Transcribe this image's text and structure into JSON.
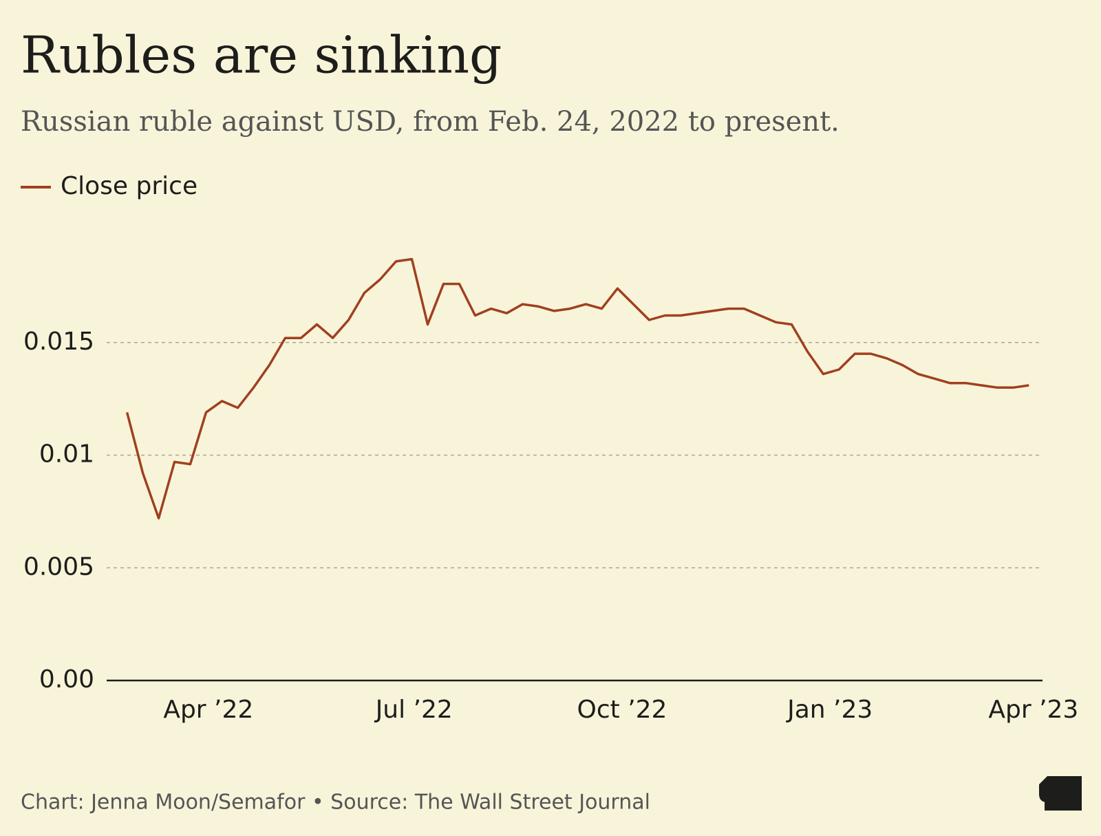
{
  "chart_data": {
    "type": "line",
    "title": "Rubles are sinking",
    "subtitle": "Russian ruble against USD, from Feb. 24, 2022 to present.",
    "footer": "Chart: Jenna Moon/Semafor • Source: The Wall Street Journal",
    "x": [
      "2022-02-24",
      "2022-03-03",
      "2022-03-10",
      "2022-03-17",
      "2022-03-24",
      "2022-03-31",
      "2022-04-07",
      "2022-04-14",
      "2022-04-21",
      "2022-04-28",
      "2022-05-05",
      "2022-05-12",
      "2022-05-19",
      "2022-05-26",
      "2022-06-02",
      "2022-06-09",
      "2022-06-16",
      "2022-06-23",
      "2022-06-30",
      "2022-07-07",
      "2022-07-14",
      "2022-07-21",
      "2022-07-28",
      "2022-08-04",
      "2022-08-11",
      "2022-08-18",
      "2022-08-25",
      "2022-09-01",
      "2022-09-08",
      "2022-09-15",
      "2022-09-22",
      "2022-09-29",
      "2022-10-06",
      "2022-10-13",
      "2022-10-20",
      "2022-10-27",
      "2022-11-03",
      "2022-11-10",
      "2022-11-17",
      "2022-11-24",
      "2022-12-01",
      "2022-12-08",
      "2022-12-15",
      "2022-12-22",
      "2022-12-29",
      "2023-01-05",
      "2023-01-12",
      "2023-01-19",
      "2023-01-26",
      "2023-02-02",
      "2023-02-09",
      "2023-02-16",
      "2023-02-23",
      "2023-03-02",
      "2023-03-09",
      "2023-03-16",
      "2023-03-23",
      "2023-03-30"
    ],
    "series": [
      {
        "name": "Close price",
        "color": "#a0401f",
        "values": [
          0.0119,
          0.0092,
          0.0072,
          0.0097,
          0.0096,
          0.0119,
          0.0124,
          0.0121,
          0.013,
          0.014,
          0.0152,
          0.0152,
          0.0158,
          0.0152,
          0.016,
          0.0172,
          0.0178,
          0.0186,
          0.0187,
          0.0158,
          0.0176,
          0.0176,
          0.0162,
          0.0165,
          0.0163,
          0.0167,
          0.0166,
          0.0164,
          0.0165,
          0.0167,
          0.0165,
          0.0174,
          0.0167,
          0.016,
          0.0162,
          0.0162,
          0.0163,
          0.0164,
          0.0165,
          0.0165,
          0.0162,
          0.0159,
          0.0158,
          0.0146,
          0.0136,
          0.0138,
          0.0145,
          0.0145,
          0.0143,
          0.014,
          0.0136,
          0.0134,
          0.0132,
          0.0132,
          0.0131,
          0.013,
          0.013,
          0.0131
        ]
      }
    ],
    "xlim": [
      "2022-02-15",
      "2023-04-05"
    ],
    "xticks": [
      {
        "value": "2022-04-01",
        "label": "Apr ’22"
      },
      {
        "value": "2022-07-01",
        "label": "Jul ’22"
      },
      {
        "value": "2022-10-01",
        "label": "Oct ’22"
      },
      {
        "value": "2023-01-01",
        "label": "Jan ’23"
      },
      {
        "value": "2023-04-01",
        "label": "Apr ’23"
      }
    ],
    "ylim": [
      0,
      0.02
    ],
    "yticks": [
      {
        "value": 0,
        "label": "0.00"
      },
      0.005,
      0.01,
      0.015
    ],
    "grid": true
  }
}
